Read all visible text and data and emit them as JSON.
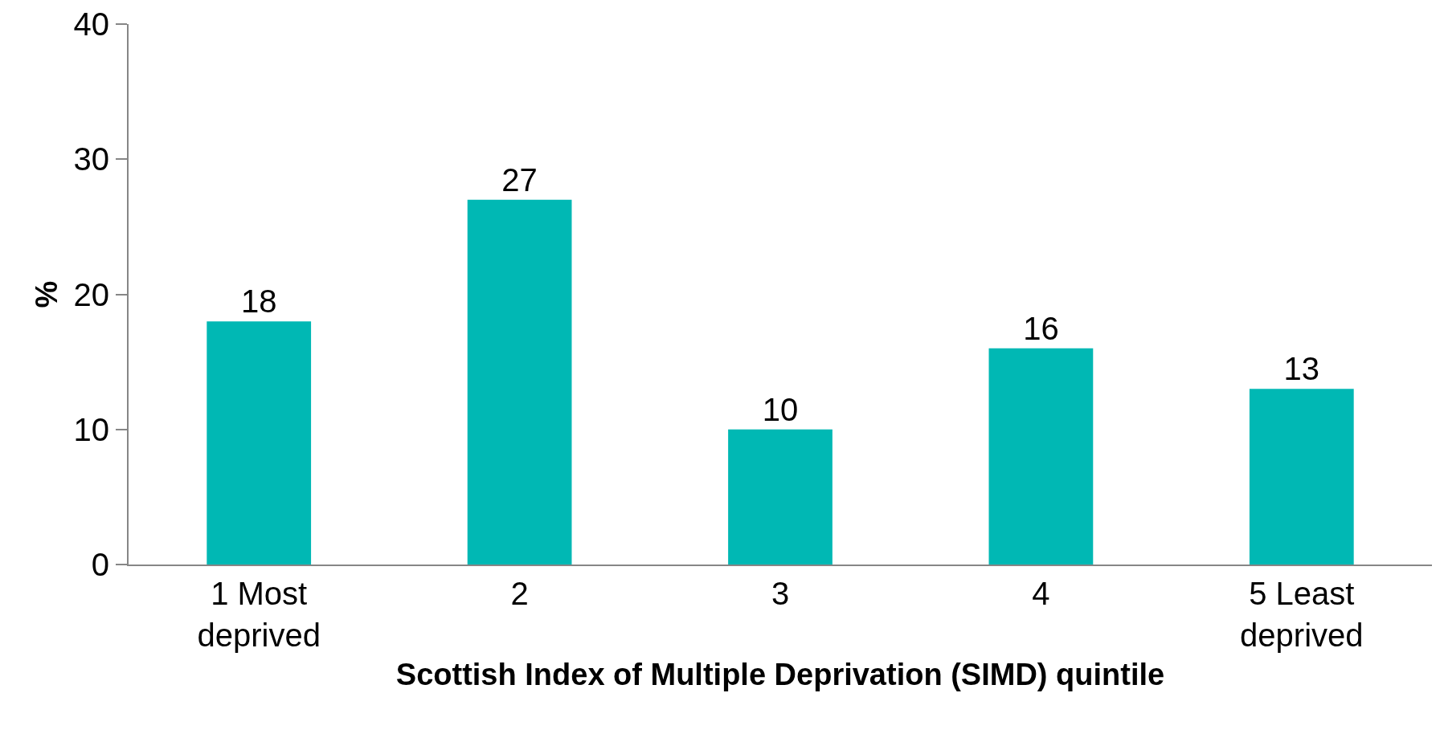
{
  "chart_data": {
    "type": "bar",
    "xlabel": "Scottish Index of Multiple Deprivation (SIMD) quintile",
    "ylabel": "%",
    "categories": [
      "1 Most deprived",
      "2",
      "3",
      "4",
      "5 Least deprived"
    ],
    "values": [
      18,
      27,
      10,
      16,
      13
    ],
    "color": "#00b8b4",
    "ylim": [
      0,
      40
    ],
    "yticks": [
      0,
      10,
      20,
      30,
      40
    ],
    "grid": false,
    "legend": false,
    "data_labels": true
  }
}
